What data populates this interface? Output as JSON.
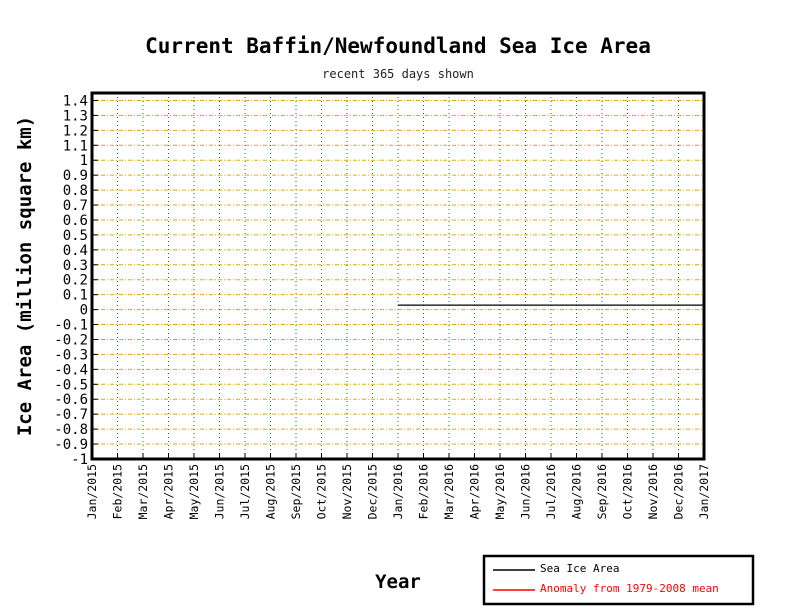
{
  "chart_data": {
    "type": "line",
    "title": "Current Baffin/Newfoundland Sea Ice Area",
    "subtitle": "recent 365 days shown",
    "xlabel": "Year",
    "ylabel": "Ice Area (million square km)",
    "ylim": [
      -1,
      1.45
    ],
    "yticks": [
      1.4,
      1.3,
      1.2,
      1.1,
      1,
      0.9,
      0.8,
      0.7,
      0.6,
      0.5,
      0.4,
      0.3,
      0.2,
      0.1,
      0,
      -0.1,
      -0.2,
      -0.3,
      -0.4,
      -0.5,
      -0.6,
      -0.7,
      -0.8,
      -0.9,
      -1
    ],
    "ytick_labels": [
      "1.4",
      "1.3",
      "1.2",
      "1.1",
      "1",
      "0.9",
      "0.8",
      "0.7",
      "0.6",
      "0.5",
      "0.4",
      "0.3",
      "0.2",
      "0.1",
      "0",
      "-0.1",
      "-0.2",
      "-0.3",
      "-0.4",
      "-0.5",
      "-0.6",
      "-0.7",
      "-0.8",
      "-0.9",
      "-1"
    ],
    "xticks": [
      "Jan/2015",
      "Feb/2015",
      "Mar/2015",
      "Apr/2015",
      "May/2015",
      "Jun/2015",
      "Jul/2015",
      "Aug/2015",
      "Sep/2015",
      "Oct/2015",
      "Nov/2015",
      "Dec/2015",
      "Jan/2016",
      "Feb/2016",
      "Mar/2016",
      "Apr/2016",
      "May/2016",
      "Jun/2016",
      "Jul/2016",
      "Aug/2016",
      "Sep/2016",
      "Oct/2016",
      "Nov/2016",
      "Dec/2016",
      "Jan/2017"
    ],
    "grid": true,
    "legend_position": "bottom-right",
    "series": [
      {
        "name": "Sea Ice Area",
        "color": "#000000",
        "x": [
          "Jan/2016",
          "Jan/2017"
        ],
        "values": [
          0.03,
          0.03
        ]
      },
      {
        "name": "Anomaly from 1979-2008 mean",
        "color": "#ff0000",
        "x": [],
        "values": []
      }
    ],
    "colors": {
      "horizontal_grid": "#e6a800",
      "vertical_grid": "#008800",
      "frame": "#000000"
    }
  }
}
